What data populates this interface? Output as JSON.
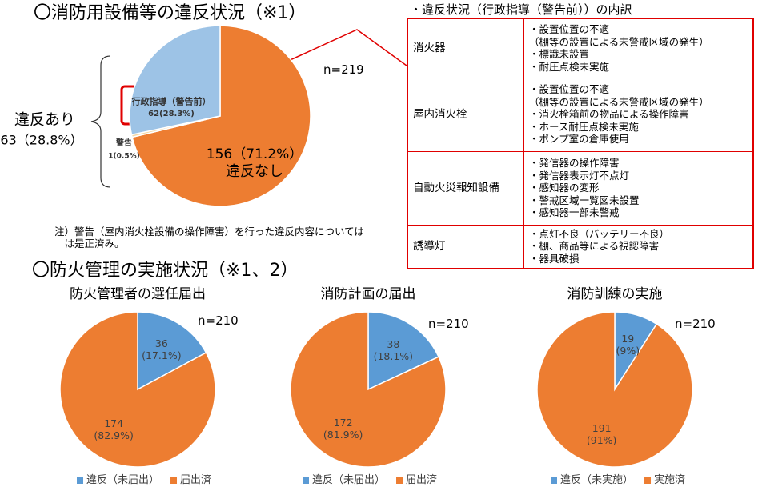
{
  "header": {
    "title1": "〇消防用設備等の違反状況（※1）",
    "title2": "〇防火管理の実施状況（※1、2）",
    "note": "注）警告（屋内消火栓設備の操作障害）を行った違反内容については\n　は是正済み。",
    "table_caption": "・違反状況（行政指導（警告前））の内訳"
  },
  "chart_data": [
    {
      "type": "pie",
      "categories": [
        "違反なし",
        "警告",
        "行政指導（警告前）"
      ],
      "values": [
        156,
        1,
        62
      ],
      "value_labels": [
        "156（71.2%）",
        "1(0.5%)",
        "62(28.3%)"
      ],
      "colors": [
        "#ed7d31",
        "#f4d9a8",
        "#9dc3e6"
      ],
      "n_label": "n=219",
      "group_label": "違反あり",
      "group_value_label": "63（28.8%）"
    },
    {
      "type": "pie",
      "title": "防火管理者の選任届出",
      "categories": [
        "違反（未届出）",
        "届出済"
      ],
      "values": [
        36,
        174
      ],
      "value_labels": [
        "36\n(17.1%)",
        "174\n(82.9%)"
      ],
      "colors": [
        "#5b9bd5",
        "#ed7d31"
      ],
      "n_label": "n=210",
      "legend": "bottom"
    },
    {
      "type": "pie",
      "title": "消防計画の届出",
      "categories": [
        "違反（未届出）",
        "届出済"
      ],
      "values": [
        38,
        172
      ],
      "value_labels": [
        "38\n(18.1%)",
        "172\n(81.9%)"
      ],
      "colors": [
        "#5b9bd5",
        "#ed7d31"
      ],
      "n_label": "n=210",
      "legend": "bottom"
    },
    {
      "type": "pie",
      "title": "消防訓練の実施",
      "categories": [
        "違反（未実施）",
        "実施済"
      ],
      "values": [
        19,
        191
      ],
      "value_labels": [
        "19\n(9%)",
        "191\n(91%)"
      ],
      "colors": [
        "#5b9bd5",
        "#ed7d31"
      ],
      "n_label": "n=210",
      "legend": "bottom"
    }
  ],
  "table": {
    "rows": [
      [
        "消火器",
        "・設置位置の不適\n（棚等の設置による未警戒区域の発生）\n・標識未設置\n・耐圧点検未実施"
      ],
      [
        "屋内消火栓",
        "・設置位置の不適\n（棚等の設置による未警戒区域の発生）\n・消火栓箱前の物品による操作障害\n・ホース耐圧点検未実施\n・ポンプ室の倉庫使用"
      ],
      [
        "自動火災報知設備",
        "・発信器の操作障害\n・発信器表示灯不点灯\n・感知器の変形\n・警戒区域一覧図未設置\n・感知器一部未警戒"
      ],
      [
        "誘導灯",
        "・点灯不良（バッテリー不良）\n・棚、商品等による視認障害\n・器具破損"
      ]
    ]
  }
}
